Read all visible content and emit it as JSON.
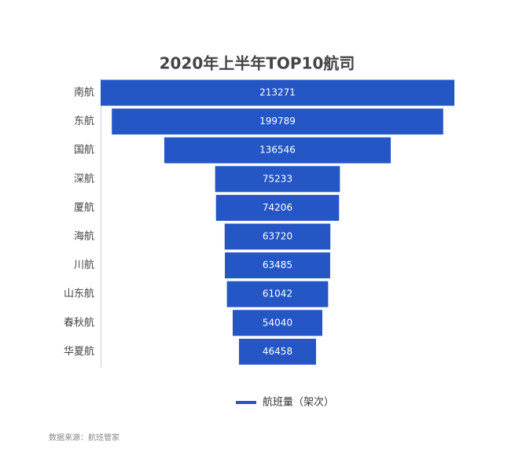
{
  "chart_data": {
    "type": "funnel",
    "title": "2020年上半年TOP10航司",
    "categories": [
      "南航",
      "东航",
      "国航",
      "深航",
      "厦航",
      "海航",
      "川航",
      "山东航",
      "春秋航",
      "华夏航"
    ],
    "series": [
      {
        "name": "航班量（架次）",
        "color": "#2456c6",
        "values": [
          213271,
          199789,
          136546,
          75233,
          74206,
          63720,
          63485,
          61042,
          54040,
          46458
        ]
      }
    ],
    "source": "数据来源：航班管家"
  }
}
